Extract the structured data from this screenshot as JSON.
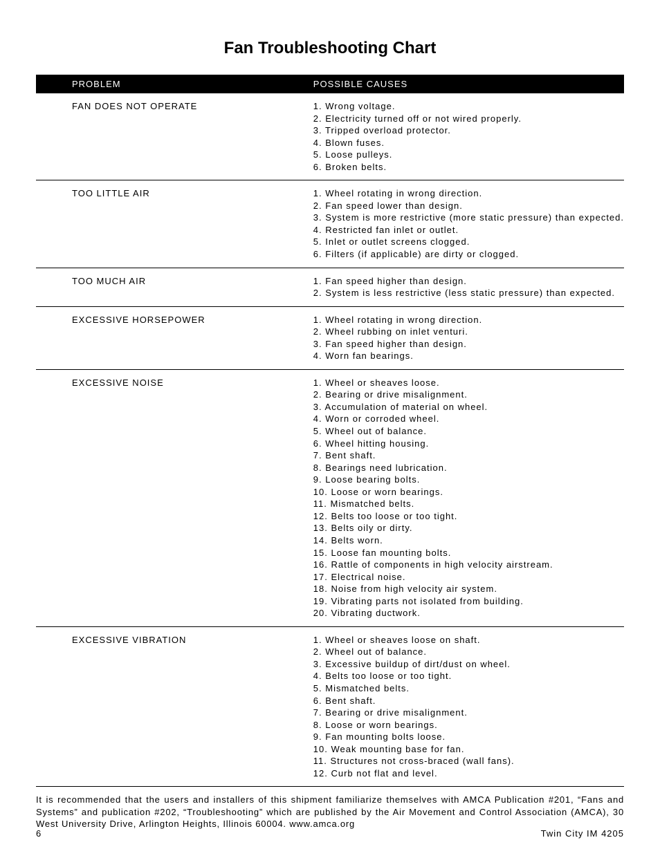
{
  "title": "Fan Troubleshooting Chart",
  "columns": {
    "problem": "PROBLEM",
    "causes": "POSSIBLE CAUSES"
  },
  "rows": [
    {
      "problem": "FAN DOES NOT OPERATE",
      "causes": [
        "Wrong voltage.",
        "Electricity turned off or not wired properly.",
        "Tripped overload protector.",
        "Blown fuses.",
        "Loose pulleys.",
        "Broken belts."
      ]
    },
    {
      "problem": "TOO LITTLE AIR",
      "causes": [
        "Wheel rotating in wrong direction.",
        "Fan speed lower than design.",
        "System is more restrictive (more static pressure) than expected.",
        "Restricted fan inlet or outlet.",
        "Inlet or outlet screens clogged.",
        "Filters (if applicable) are dirty or clogged."
      ]
    },
    {
      "problem": "TOO MUCH AIR",
      "causes": [
        "Fan speed higher than design.",
        "System is less restrictive (less static pressure) than expected."
      ]
    },
    {
      "problem": "EXCESSIVE HORSEPOWER",
      "causes": [
        "Wheel rotating in wrong direction.",
        "Wheel rubbing on inlet venturi.",
        "Fan speed higher than design.",
        "Worn fan bearings."
      ]
    },
    {
      "problem": "EXCESSIVE NOISE",
      "causes": [
        "Wheel or sheaves loose.",
        "Bearing or drive misalignment.",
        "Accumulation of material on wheel.",
        "Worn or corroded wheel.",
        "Wheel out of balance.",
        "Wheel hitting housing.",
        "Bent shaft.",
        "Bearings need lubrication.",
        "Loose bearing bolts.",
        "Loose or worn bearings.",
        "Mismatched belts.",
        "Belts too loose or too tight.",
        "Belts oily or dirty.",
        "Belts worn.",
        "Loose fan mounting bolts.",
        "Rattle of components in high velocity airstream.",
        "Electrical noise.",
        "Noise from high velocity air system.",
        "Vibrating parts not isolated from building.",
        "Vibrating ductwork."
      ]
    },
    {
      "problem": "EXCESSIVE VIBRATION",
      "causes": [
        "Wheel or sheaves loose on shaft.",
        "Wheel out of balance.",
        "Excessive buildup of dirt/dust on wheel.",
        "Belts too loose or too tight.",
        "Mismatched belts.",
        "Bent shaft.",
        "Bearing or drive misalignment.",
        "Loose or worn bearings.",
        "Fan mounting bolts loose.",
        "Weak mounting base for fan.",
        "Structures not cross-braced (wall fans).",
        "Curb not flat and level."
      ]
    }
  ],
  "footnote": "It is recommended that the users and installers of this shipment familiarize themselves with AMCA Publication #201, “Fans and Systems” and publication #202, “Troubleshooting” which are published by the Air Movement and Control Association (AMCA), 30 West University Drive, Arlington Heights, Illinois 60004. www.amca.org",
  "footer": {
    "page": "6",
    "doc": "Twin City IM 4205"
  }
}
